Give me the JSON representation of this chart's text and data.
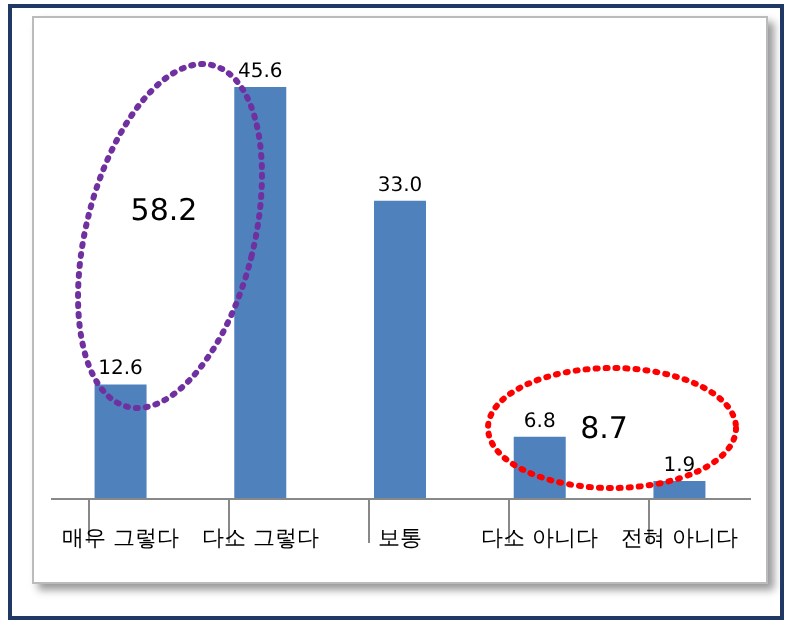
{
  "chart_data": {
    "type": "bar",
    "categories": [
      "매우 그렇다",
      "다소 그렇다",
      "보통",
      "다소 아니다",
      "전혀 아니다"
    ],
    "values": [
      12.6,
      45.6,
      33.0,
      6.8,
      1.9
    ],
    "value_labels": [
      "12.6",
      "45.6",
      "33.0",
      "6.8",
      "1.9"
    ],
    "color": "#4f81bd",
    "annotations": [
      "58.2",
      "8.7"
    ],
    "grid": false,
    "tick_labels": "x"
  }
}
